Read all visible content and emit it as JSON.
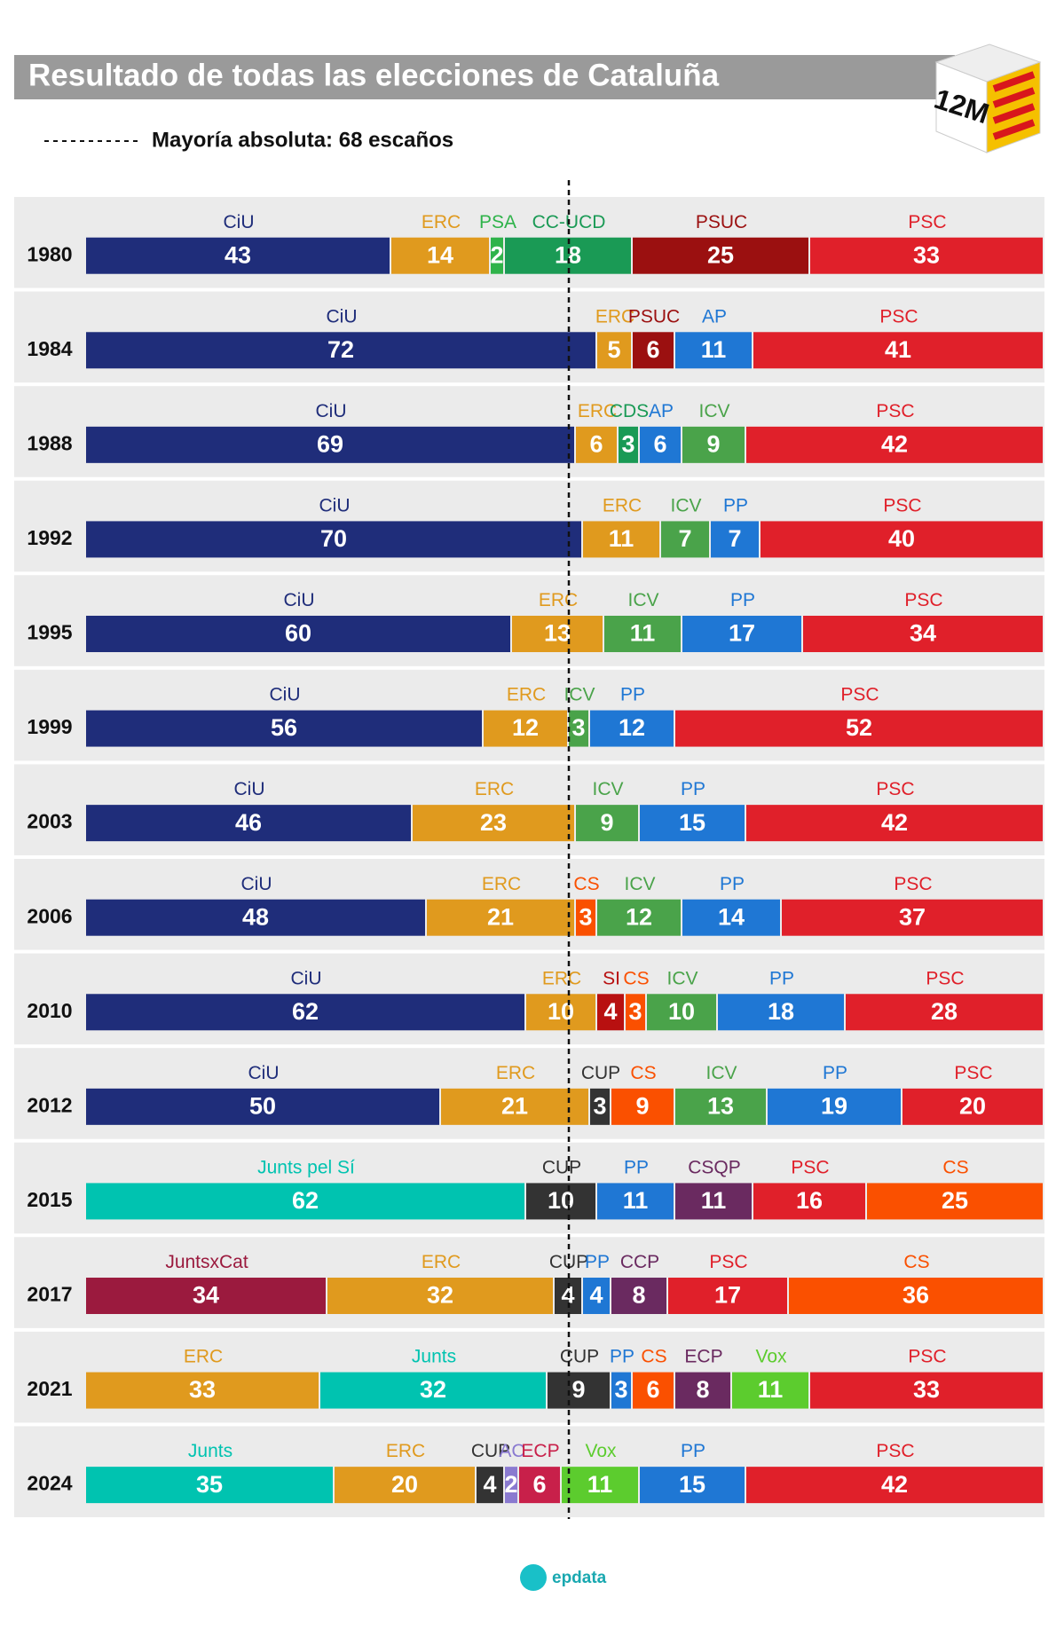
{
  "chart_data": {
    "type": "stacked-bar-horizontal",
    "title": "Resultado de todas las elecciones de Cataluña",
    "badge": "12M",
    "majority": {
      "label": "Mayoría absoluta: 68 escaños",
      "value": 68
    },
    "xlim": [
      0,
      135
    ],
    "rows": [
      {
        "year": "1980",
        "segments": [
          {
            "name": "CiU",
            "value": 43,
            "color": "#1f2d7a"
          },
          {
            "name": "ERC",
            "value": 14,
            "color": "#e09a1e"
          },
          {
            "name": "PSA",
            "value": 2,
            "color": "#2fb34a"
          },
          {
            "name": "CC-UCD",
            "value": 18,
            "color": "#1a9a55"
          },
          {
            "name": "PSUC",
            "value": 25,
            "color": "#9b1010"
          },
          {
            "name": "PSC",
            "value": 33,
            "color": "#e0202a"
          }
        ]
      },
      {
        "year": "1984",
        "segments": [
          {
            "name": "CiU",
            "value": 72,
            "color": "#1f2d7a"
          },
          {
            "name": "ERC",
            "value": 5,
            "color": "#e09a1e"
          },
          {
            "name": "PSUC",
            "value": 6,
            "color": "#9b1010"
          },
          {
            "name": "AP",
            "value": 11,
            "color": "#1f77d4"
          },
          {
            "name": "PSC",
            "value": 41,
            "color": "#e0202a"
          }
        ]
      },
      {
        "year": "1988",
        "segments": [
          {
            "name": "CiU",
            "value": 69,
            "color": "#1f2d7a"
          },
          {
            "name": "ERC",
            "value": 6,
            "color": "#e09a1e"
          },
          {
            "name": "CDS",
            "value": 3,
            "color": "#1a9a55"
          },
          {
            "name": "AP",
            "value": 6,
            "color": "#1f77d4"
          },
          {
            "name": "ICV",
            "value": 9,
            "color": "#4aa34a"
          },
          {
            "name": "PSC",
            "value": 42,
            "color": "#e0202a"
          }
        ]
      },
      {
        "year": "1992",
        "segments": [
          {
            "name": "CiU",
            "value": 70,
            "color": "#1f2d7a"
          },
          {
            "name": "ERC",
            "value": 11,
            "color": "#e09a1e"
          },
          {
            "name": "ICV",
            "value": 7,
            "color": "#4aa34a"
          },
          {
            "name": "PP",
            "value": 7,
            "color": "#1f77d4"
          },
          {
            "name": "PSC",
            "value": 40,
            "color": "#e0202a"
          }
        ]
      },
      {
        "year": "1995",
        "segments": [
          {
            "name": "CiU",
            "value": 60,
            "color": "#1f2d7a"
          },
          {
            "name": "ERC",
            "value": 13,
            "color": "#e09a1e"
          },
          {
            "name": "ICV",
            "value": 11,
            "color": "#4aa34a"
          },
          {
            "name": "PP",
            "value": 17,
            "color": "#1f77d4"
          },
          {
            "name": "PSC",
            "value": 34,
            "color": "#e0202a"
          }
        ]
      },
      {
        "year": "1999",
        "segments": [
          {
            "name": "CiU",
            "value": 56,
            "color": "#1f2d7a"
          },
          {
            "name": "ERC",
            "value": 12,
            "color": "#e09a1e"
          },
          {
            "name": "ICV",
            "value": 3,
            "color": "#4aa34a"
          },
          {
            "name": "PP",
            "value": 12,
            "color": "#1f77d4"
          },
          {
            "name": "PSC",
            "value": 52,
            "color": "#e0202a"
          }
        ]
      },
      {
        "year": "2003",
        "segments": [
          {
            "name": "CiU",
            "value": 46,
            "color": "#1f2d7a"
          },
          {
            "name": "ERC",
            "value": 23,
            "color": "#e09a1e"
          },
          {
            "name": "ICV",
            "value": 9,
            "color": "#4aa34a"
          },
          {
            "name": "PP",
            "value": 15,
            "color": "#1f77d4"
          },
          {
            "name": "PSC",
            "value": 42,
            "color": "#e0202a"
          }
        ]
      },
      {
        "year": "2006",
        "segments": [
          {
            "name": "CiU",
            "value": 48,
            "color": "#1f2d7a"
          },
          {
            "name": "ERC",
            "value": 21,
            "color": "#e09a1e"
          },
          {
            "name": "CS",
            "value": 3,
            "color": "#fa5000"
          },
          {
            "name": "ICV",
            "value": 12,
            "color": "#4aa34a"
          },
          {
            "name": "PP",
            "value": 14,
            "color": "#1f77d4"
          },
          {
            "name": "PSC",
            "value": 37,
            "color": "#e0202a"
          }
        ]
      },
      {
        "year": "2010",
        "segments": [
          {
            "name": "CiU",
            "value": 62,
            "color": "#1f2d7a"
          },
          {
            "name": "ERC",
            "value": 10,
            "color": "#e09a1e"
          },
          {
            "name": "SI",
            "value": 4,
            "color": "#b81010"
          },
          {
            "name": "CS",
            "value": 3,
            "color": "#fa5000"
          },
          {
            "name": "ICV",
            "value": 10,
            "color": "#4aa34a"
          },
          {
            "name": "PP",
            "value": 18,
            "color": "#1f77d4"
          },
          {
            "name": "PSC",
            "value": 28,
            "color": "#e0202a"
          }
        ]
      },
      {
        "year": "2012",
        "segments": [
          {
            "name": "CiU",
            "value": 50,
            "color": "#1f2d7a"
          },
          {
            "name": "ERC",
            "value": 21,
            "color": "#e09a1e"
          },
          {
            "name": "CUP",
            "value": 3,
            "color": "#333333"
          },
          {
            "name": "CS",
            "value": 9,
            "color": "#fa5000"
          },
          {
            "name": "ICV",
            "value": 13,
            "color": "#4aa34a"
          },
          {
            "name": "PP",
            "value": 19,
            "color": "#1f77d4"
          },
          {
            "name": "PSC",
            "value": 20,
            "color": "#e0202a"
          }
        ]
      },
      {
        "year": "2015",
        "segments": [
          {
            "name": "Junts pel Sí",
            "value": 62,
            "color": "#00c3b0"
          },
          {
            "name": "CUP",
            "value": 10,
            "color": "#333333"
          },
          {
            "name": "PP",
            "value": 11,
            "color": "#1f77d4"
          },
          {
            "name": "CSQP",
            "value": 11,
            "color": "#6a2a60"
          },
          {
            "name": "PSC",
            "value": 16,
            "color": "#e0202a"
          },
          {
            "name": "CS",
            "value": 25,
            "color": "#fa5000"
          }
        ]
      },
      {
        "year": "2017",
        "segments": [
          {
            "name": "JuntsxCat",
            "value": 34,
            "color": "#9b1a3e"
          },
          {
            "name": "ERC",
            "value": 32,
            "color": "#e09a1e"
          },
          {
            "name": "CUP",
            "value": 4,
            "color": "#333333"
          },
          {
            "name": "PP",
            "value": 4,
            "color": "#1f77d4"
          },
          {
            "name": "CCP",
            "value": 8,
            "color": "#6a2a60"
          },
          {
            "name": "PSC",
            "value": 17,
            "color": "#e0202a"
          },
          {
            "name": "CS",
            "value": 36,
            "color": "#fa5000"
          }
        ]
      },
      {
        "year": "2021",
        "segments": [
          {
            "name": "ERC",
            "value": 33,
            "color": "#e09a1e"
          },
          {
            "name": "Junts",
            "value": 32,
            "color": "#00c3b0"
          },
          {
            "name": "CUP",
            "value": 9,
            "color": "#333333"
          },
          {
            "name": "PP",
            "value": 3,
            "color": "#1f77d4"
          },
          {
            "name": "CS",
            "value": 6,
            "color": "#fa5000"
          },
          {
            "name": "ECP",
            "value": 8,
            "color": "#6a2a60"
          },
          {
            "name": "Vox",
            "value": 11,
            "color": "#5ccc2e"
          },
          {
            "name": "PSC",
            "value": 33,
            "color": "#e0202a"
          }
        ]
      },
      {
        "year": "2024",
        "segments": [
          {
            "name": "Junts",
            "value": 35,
            "color": "#00c3b0"
          },
          {
            "name": "ERC",
            "value": 20,
            "color": "#e09a1e"
          },
          {
            "name": "CUP",
            "value": 4,
            "color": "#333333"
          },
          {
            "name": "AC",
            "value": 2,
            "color": "#8a7ad0"
          },
          {
            "name": "ECP",
            "value": 6,
            "color": "#c8204a"
          },
          {
            "name": "Vox",
            "value": 11,
            "color": "#5ccc2e"
          },
          {
            "name": "PP",
            "value": 15,
            "color": "#1f77d4"
          },
          {
            "name": "PSC",
            "value": 42,
            "color": "#e0202a"
          }
        ]
      }
    ],
    "logo": "epdata"
  }
}
